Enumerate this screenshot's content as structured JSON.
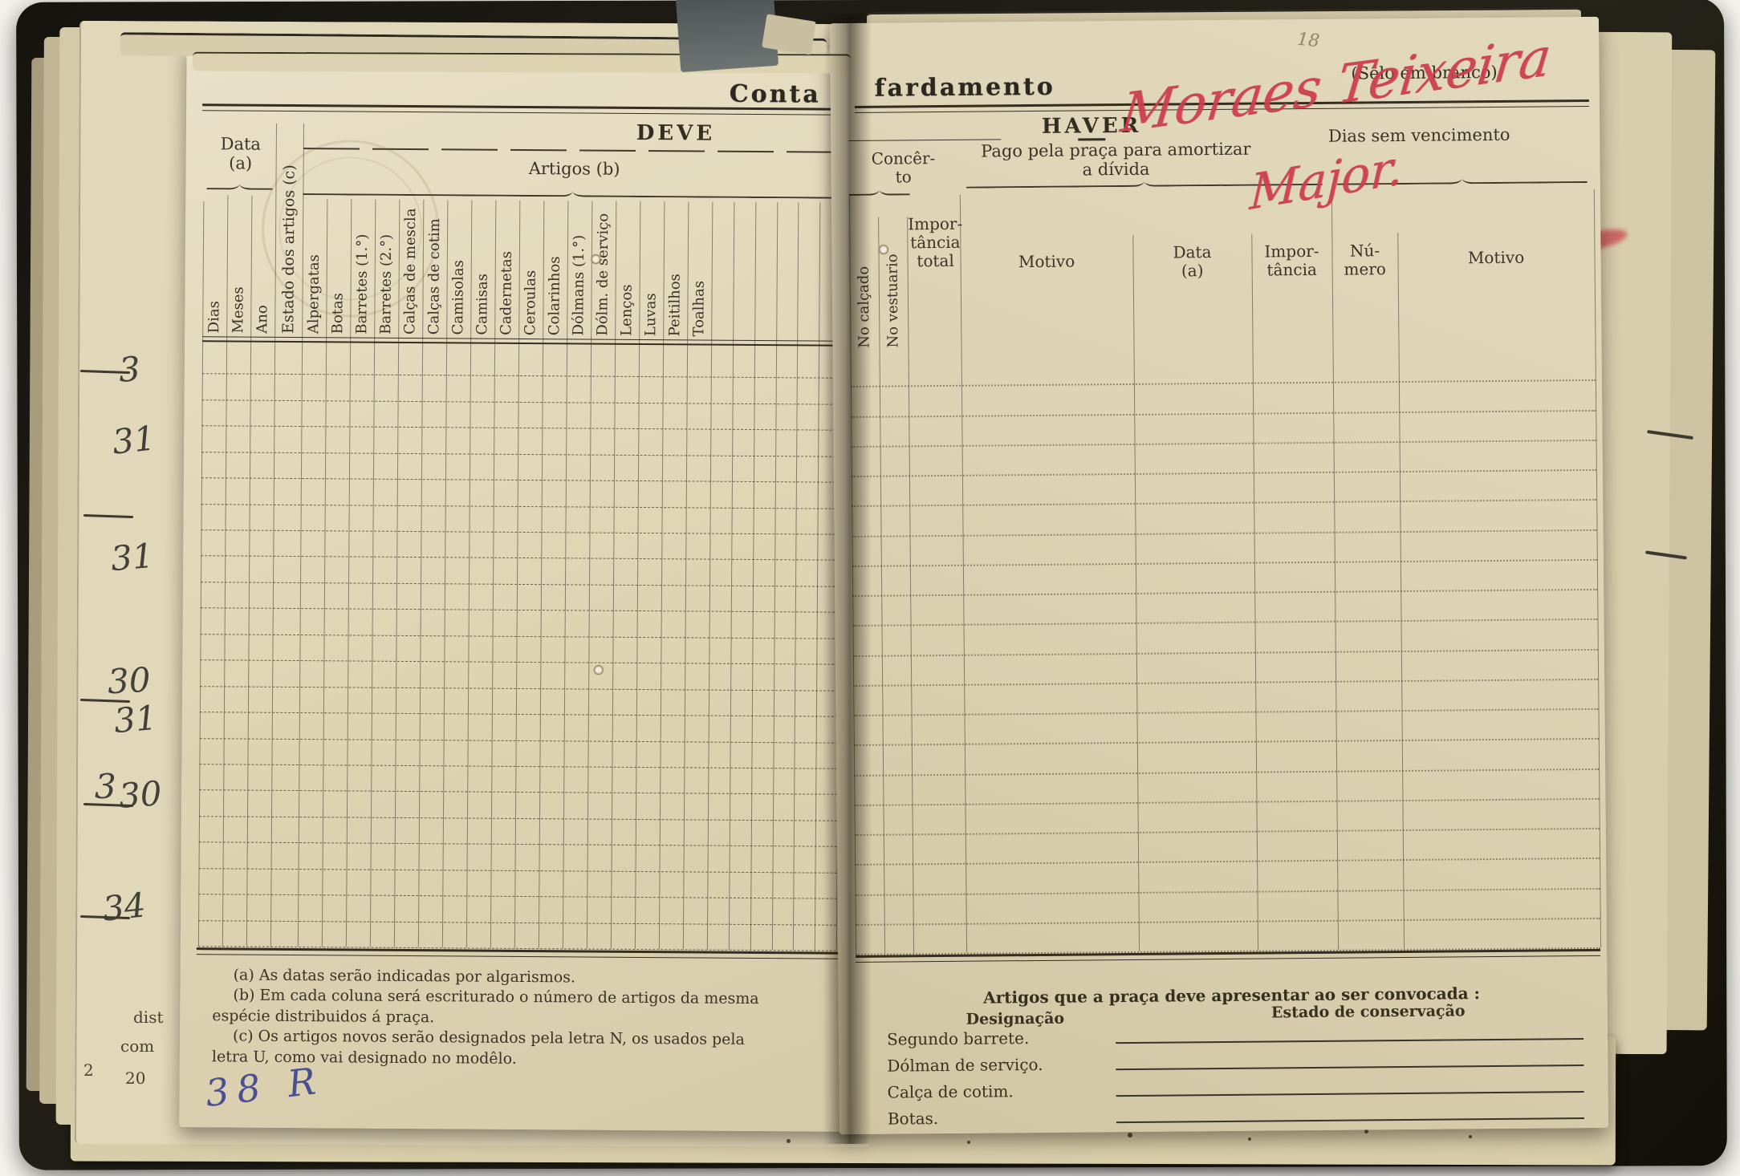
{
  "page_header": {
    "title_left": "Conta de",
    "title_right": "fardamento",
    "seal_note": "(Sêlo em branco)"
  },
  "deve": {
    "title": "DEVE",
    "data_group_label": "Data\n(a)",
    "date_columns": [
      "Dias",
      "Meses",
      "Ano"
    ],
    "estado_column": "Estado dos artigos (c)",
    "artigos_label": "Artigos (b)",
    "artigo_columns": [
      "Alpergatas",
      "Botas",
      "Barretes (1.°)",
      "Barretes (2.°)",
      "Calças de mescla",
      "Calças de cotim",
      "Camisolas",
      "Camisas",
      "Cadernetas",
      "Ceroulas",
      "Colarinhos",
      "Dólmans (1.°)",
      "Dólm. de serviço",
      "Lenços",
      "Luvas",
      "Peitilhos",
      "Toalhas"
    ],
    "empty_columns": 6,
    "rows": 23,
    "footnotes": [
      "(a) As datas serão indicadas por algarismos.",
      "(b) Em cada coluna será escriturado o número de artigos da mesma espécie distribuidos á praça.",
      "(c) Os artigos novos serão designados pela letra N, os usados pela letra U, como vai designado no modêlo."
    ],
    "handwriting_blue": "38 R"
  },
  "haver": {
    "title": "HAVER",
    "pago_label": "Pago pela praça para amortizar\na dívida",
    "dias_label": "Dias sem vencimento",
    "concerto_label": "Concêr-\nto",
    "concerto_columns": [
      "No calçado",
      "No vestuario"
    ],
    "importancia_total_label": "Impor-\ntância\ntotal",
    "pago_columns": [
      "Motivo",
      "Data\n(a)",
      "Impor-\ntância"
    ],
    "dias_columns": [
      "Nú-\nmero",
      "Motivo"
    ],
    "rows": 20,
    "bottom": {
      "heading": "Artigos que a praça deve apresentar ao ser convocada :",
      "designacao": "Designação",
      "estado": "Estado de conservação",
      "items": [
        "Segundo barrete.",
        "Dólman de serviço.",
        "Calça de cotim.",
        "Botas."
      ]
    },
    "handwriting_red_signature": "Moraes Teixeira",
    "handwriting_red_rank": "Major.",
    "pencil_note": "18"
  },
  "margin_handwriting": [
    "3",
    "31",
    "31",
    "30",
    "31",
    "3",
    "30",
    "34"
  ],
  "margin_fragments": [
    "2",
    "dist",
    "com",
    "20"
  ],
  "edge_fragments": [
    "9)",
    "o)"
  ],
  "colors": {
    "red_ink": "#cc3e4e",
    "blue_ink": "#4a4f91",
    "pencil": "#8d8570"
  }
}
